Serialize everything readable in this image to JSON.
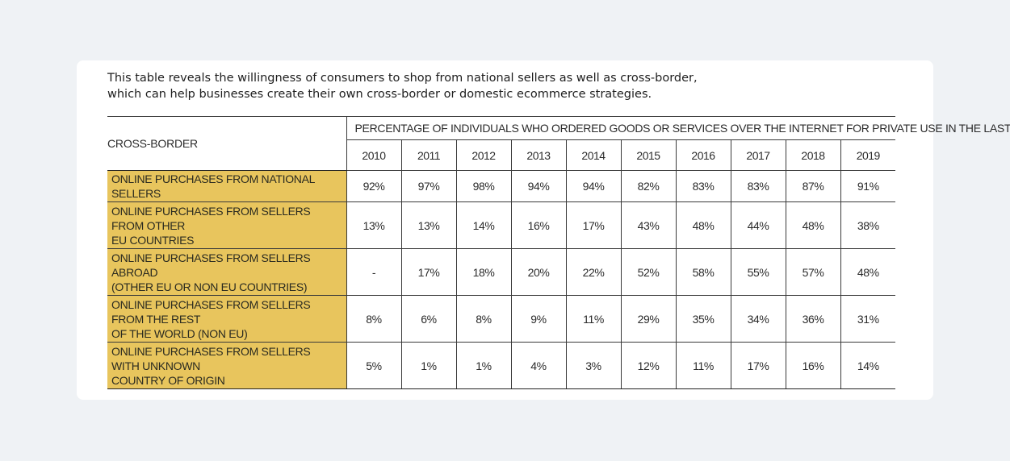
{
  "intro": {
    "line1": "This table reveals the willingness of consumers to shop from national sellers as well as cross-border,",
    "line2": "which can help businesses create their own cross-border or domestic ecommerce strategies."
  },
  "table": {
    "corner_label": "CROSS-BORDER",
    "super_header": "PERCENTAGE OF INDIVIDUALS WHO ORDERED GOODS OR SERVICES OVER THE INTERNET FOR PRIVATE USE IN THE LAST YEAR",
    "years": [
      "2010",
      "2011",
      "2012",
      "2013",
      "2014",
      "2015",
      "2016",
      "2017",
      "2018",
      "2019"
    ],
    "rows": [
      {
        "label_lines": [
          "ONLINE PURCHASES FROM NATIONAL SELLERS"
        ],
        "values": [
          "92%",
          "97%",
          "98%",
          "94%",
          "94%",
          "82%",
          "83%",
          "83%",
          "87%",
          "91%"
        ]
      },
      {
        "label_lines": [
          "ONLINE PURCHASES FROM SELLERS FROM OTHER",
          "EU COUNTRIES"
        ],
        "values": [
          "13%",
          "13%",
          "14%",
          "16%",
          "17%",
          "43%",
          "48%",
          "44%",
          "48%",
          "38%"
        ]
      },
      {
        "label_lines": [
          "ONLINE PURCHASES FROM SELLERS ABROAD",
          "(OTHER EU OR NON EU COUNTRIES)"
        ],
        "values": [
          "-",
          "17%",
          "18%",
          "20%",
          "22%",
          "52%",
          "58%",
          "55%",
          "57%",
          "48%"
        ]
      },
      {
        "label_lines": [
          "ONLINE PURCHASES FROM SELLERS FROM THE REST",
          "OF THE WORLD (NON EU)"
        ],
        "values": [
          "8%",
          "6%",
          "8%",
          "9%",
          "11%",
          "29%",
          "35%",
          "34%",
          "36%",
          "31%"
        ]
      },
      {
        "label_lines": [
          "ONLINE PURCHASES FROM SELLERS WITH UNKNOWN",
          "COUNTRY OF ORIGIN"
        ],
        "values": [
          "5%",
          "1%",
          "1%",
          "4%",
          "3%",
          "12%",
          "11%",
          "17%",
          "16%",
          "14%"
        ]
      }
    ]
  },
  "colors": {
    "page_background": "#eff2f5",
    "card_background": "#ffffff",
    "row_label_background": "#e8c55d"
  }
}
